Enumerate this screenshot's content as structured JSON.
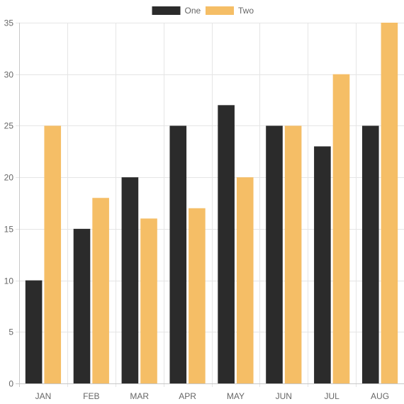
{
  "chart_data": {
    "type": "bar",
    "title": "",
    "xlabel": "",
    "ylabel": "",
    "categories": [
      "JAN",
      "FEB",
      "MAR",
      "APR",
      "MAY",
      "JUN",
      "JUL",
      "AUG"
    ],
    "series": [
      {
        "name": "One",
        "color": "#2b2b2b",
        "values": [
          10,
          15,
          20,
          25,
          27,
          25,
          23,
          25
        ]
      },
      {
        "name": "Two",
        "color": "#f5be66",
        "values": [
          25,
          18,
          16,
          17,
          20,
          25,
          30,
          35
        ]
      }
    ],
    "ylim": [
      0,
      35
    ],
    "yticks": [
      0,
      5,
      10,
      15,
      20,
      25,
      30,
      35
    ],
    "grid": true,
    "legend_position": "top"
  }
}
